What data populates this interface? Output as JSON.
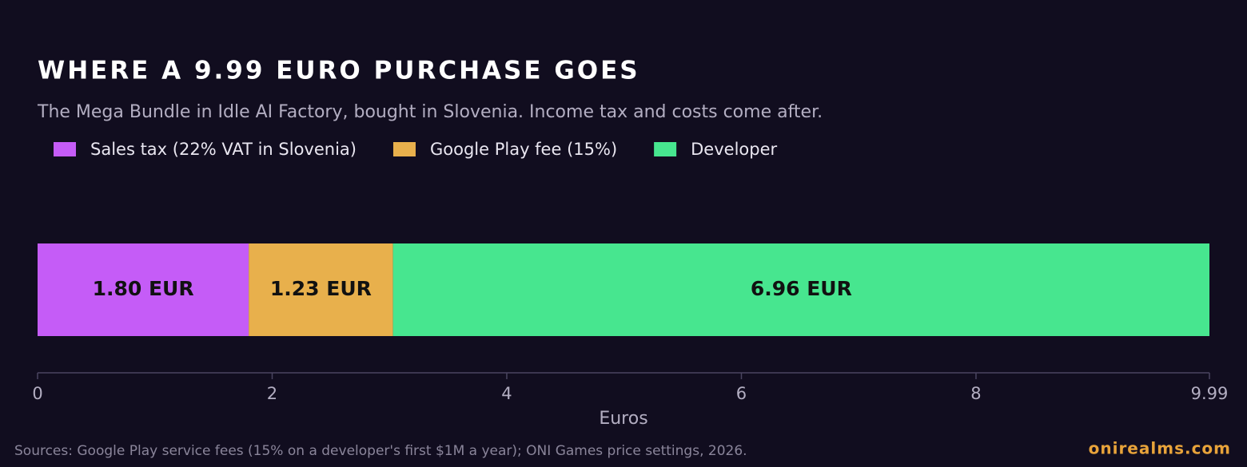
{
  "chart_data": {
    "type": "stacked_bar_horizontal",
    "title": "WHERE A 9.99 EURO PURCHASE GOES",
    "subtitle": "The Mega Bundle in Idle AI Factory, bought in Slovenia. Income tax and costs come after.",
    "series": [
      {
        "name": "Sales tax (22% VAT in Slovenia)",
        "color": "#c55cf7",
        "values": [
          1.8
        ],
        "value_labels": [
          "1.80 EUR"
        ]
      },
      {
        "name": "Google Play fee (15%)",
        "color": "#e8b04c",
        "values": [
          1.23
        ],
        "value_labels": [
          "1.23 EUR"
        ]
      },
      {
        "name": "Developer",
        "color": "#47e68f",
        "values": [
          6.96
        ],
        "value_labels": [
          "6.96 EUR"
        ]
      }
    ],
    "xlabel": "Euros",
    "xlim": [
      0,
      9.99
    ],
    "xticks": [
      0,
      2,
      4,
      6,
      8,
      9.99
    ],
    "legend": "top-left",
    "source": "Sources: Google Play service fees (15% on a developer's first $1M a year); ONI Games price settings, 2026.",
    "brand": "onirealms.com"
  }
}
